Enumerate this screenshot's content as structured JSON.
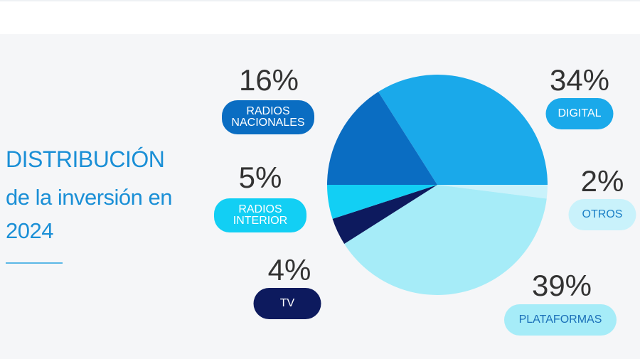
{
  "chart_data": {
    "type": "pie",
    "title": "DISTRIBUCIÓN",
    "subtitle": "de la inversión en 2024",
    "categories": [
      "DIGITAL",
      "OTROS",
      "PLATAFORMAS",
      "TV",
      "RADIOS INTERIOR",
      "RADIOS NACIONALES"
    ],
    "values": [
      34,
      2,
      39,
      4,
      5,
      16
    ],
    "value_labels": [
      "34%",
      "2%",
      "39%",
      "4%",
      "5%",
      "16%"
    ],
    "colors": [
      "#1aa9ea",
      "#c9f2fb",
      "#a6ecf8",
      "#0d1a5e",
      "#12cff4",
      "#0a6dc2"
    ]
  }
}
